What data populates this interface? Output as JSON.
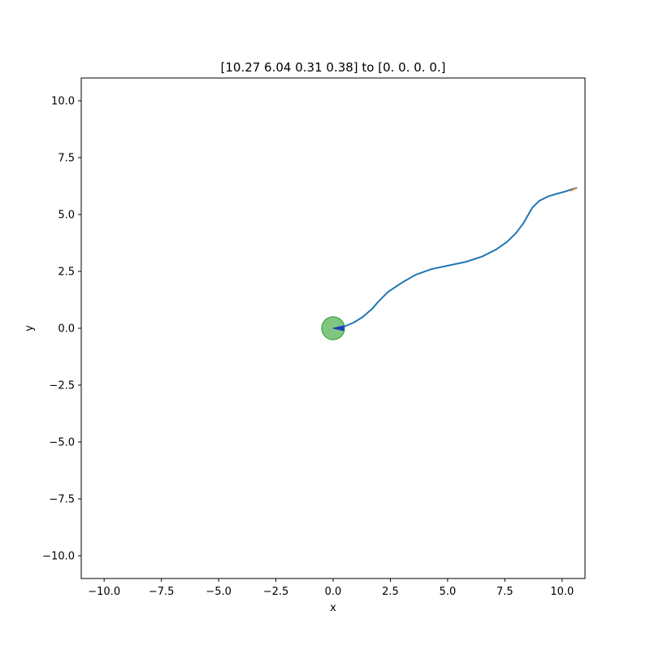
{
  "chart_data": {
    "type": "line",
    "title": "[10.27  6.04  0.31  0.38] to [0. 0. 0. 0.]",
    "xlabel": "x",
    "ylabel": "y",
    "xlim": [
      -11,
      11
    ],
    "ylim": [
      -11,
      11
    ],
    "grid": false,
    "xticks": [
      -10.0,
      -7.5,
      -5.0,
      -2.5,
      0.0,
      2.5,
      5.0,
      7.5,
      10.0
    ],
    "yticks": [
      -10.0,
      -7.5,
      -5.0,
      -2.5,
      0.0,
      2.5,
      5.0,
      7.5,
      10.0
    ],
    "xtick_labels": [
      "−10.0",
      "−7.5",
      "−5.0",
      "−2.5",
      "0.0",
      "2.5",
      "5.0",
      "7.5",
      "10.0"
    ],
    "ytick_labels": [
      "−10.0",
      "−7.5",
      "−5.0",
      "−2.5",
      "0.0",
      "2.5",
      "5.0",
      "7.5",
      "10.0"
    ],
    "series": [
      {
        "color": "#1f77b4",
        "x": [
          10.63,
          10.4,
          10.1,
          9.8,
          9.4,
          9.0,
          8.7,
          8.5,
          8.3,
          8.0,
          7.6,
          7.1,
          6.5,
          5.8,
          5.0,
          4.3,
          3.6,
          3.0,
          2.4,
          2.0,
          1.7,
          1.3,
          0.9,
          0.5,
          0.1
        ],
        "y": [
          6.17,
          6.1,
          6.0,
          5.92,
          5.8,
          5.6,
          5.3,
          4.95,
          4.6,
          4.2,
          3.8,
          3.45,
          3.15,
          2.92,
          2.75,
          2.6,
          2.35,
          2.0,
          1.6,
          1.2,
          0.85,
          0.5,
          0.25,
          0.08,
          0.0
        ]
      }
    ],
    "start_marker": {
      "x": 10.5,
      "y": 6.1,
      "color": "#ff7f0e"
    },
    "goal": {
      "x": 0.0,
      "y": 0.0,
      "radius": 0.5,
      "color": "#2ca02c"
    },
    "agent": {
      "x": 0.0,
      "y": 0.0,
      "color": "#1f3fbf"
    }
  }
}
